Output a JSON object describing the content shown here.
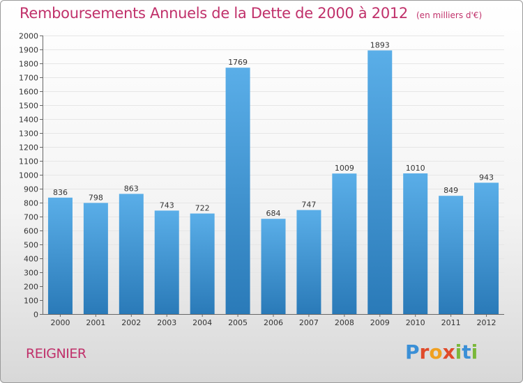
{
  "header": {
    "title": "Remboursements Annuels de la Dette de 2000 à 2012",
    "subtitle": "(en milliers d'€)"
  },
  "footer": {
    "commune": "REIGNIER",
    "logo_text": "Proxiti"
  },
  "colors": {
    "bar_top": "#5aaee8",
    "bar_bottom": "#2a7ab8",
    "title": "#c0306a",
    "logo_blue": "#3a8fd6",
    "logo_orange": "#f0a020",
    "logo_red": "#e04a2a",
    "logo_green": "#7ab83a"
  },
  "chart_data": {
    "type": "bar",
    "title": "Remboursements Annuels de la Dette de 2000 à 2012",
    "subtitle": "(en milliers d'€)",
    "categories": [
      "2000",
      "2001",
      "2002",
      "2003",
      "2004",
      "2005",
      "2006",
      "2007",
      "2008",
      "2009",
      "2010",
      "2011",
      "2012"
    ],
    "values": [
      836,
      798,
      863,
      743,
      722,
      1769,
      684,
      747,
      1009,
      1893,
      1010,
      849,
      943
    ],
    "ylim": [
      0,
      2000
    ],
    "ytick_step": 100,
    "grid": true,
    "data_labels": true
  }
}
